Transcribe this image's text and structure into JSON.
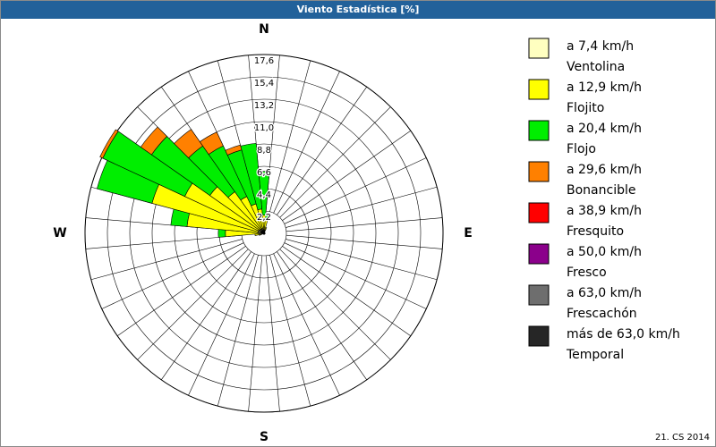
{
  "chart_data": {
    "type": "windrose",
    "title": "Viento Estadística [%]",
    "footer": "21. CS 2014",
    "categories": [
      "N",
      null,
      null,
      null,
      null,
      null,
      null,
      null,
      null,
      "E",
      null,
      null,
      null,
      null,
      null,
      null,
      null,
      null,
      "S",
      null,
      null,
      null,
      null,
      null,
      null,
      null,
      null,
      "W",
      null,
      null,
      null,
      null,
      null,
      null,
      null,
      null
    ],
    "ylim": [
      0,
      17.6
    ],
    "yticks": [
      {
        "value": 2.2,
        "label": "2,2"
      },
      {
        "value": 4.4,
        "label": "4,4"
      },
      {
        "value": 6.6,
        "label": "6,6"
      },
      {
        "value": 8.8,
        "label": "8,8"
      },
      {
        "value": 11.0,
        "label": "11,0"
      },
      {
        "value": 13.2,
        "label": "13,2"
      },
      {
        "value": 15.4,
        "label": "15,4"
      },
      {
        "value": 17.6,
        "label": "17,6"
      }
    ],
    "grid": true,
    "legend": "right",
    "series": [
      {
        "name": "a 7,4 km/h",
        "description": "Ventolina",
        "color": "#ffffc0",
        "values": [
          0.3,
          0.3,
          0.2,
          0.1,
          0.1,
          0.1,
          0.1,
          0.1,
          0.1,
          0.1,
          0.1,
          0.1,
          0.1,
          0.1,
          0.1,
          0.1,
          0.1,
          0.1,
          0.1,
          0.1,
          0.1,
          0.1,
          0.1,
          0.1,
          0.1,
          0.2,
          0.3,
          0.5,
          0.6,
          0.6,
          0.6,
          0.5,
          0.5,
          0.5,
          0.5,
          0.4
        ]
      },
      {
        "name": "a 12,9 km/h",
        "description": "Flojito",
        "color": "#ffff00",
        "values": [
          1.5,
          1.0,
          0.4,
          0,
          0,
          0,
          0,
          0,
          0,
          0,
          0,
          0,
          0,
          0,
          0,
          0,
          0,
          0,
          0,
          0,
          0,
          0,
          0,
          0,
          0,
          0.3,
          0.6,
          3.3,
          7.0,
          10.8,
          8.0,
          6.0,
          4.5,
          3.5,
          2.5,
          2.0
        ]
      },
      {
        "name": "a 20,4 km/h",
        "description": "Flojo",
        "color": "#00ee00",
        "values": [
          4.3,
          0.5,
          0,
          0,
          0,
          0,
          0,
          0,
          0,
          0,
          0,
          0,
          0,
          0,
          0,
          0,
          0,
          0,
          0,
          0,
          0,
          0,
          0,
          0,
          0,
          0,
          0,
          0.7,
          1.6,
          5.6,
          8.9,
          7.0,
          5.5,
          5.5,
          5.5,
          6.5
        ]
      },
      {
        "name": "a 29,6 km/h",
        "description": "Bonancible",
        "color": "#ff8000",
        "values": [
          0,
          0,
          0,
          0,
          0,
          0,
          0,
          0,
          0,
          0,
          0,
          0,
          0,
          0,
          0,
          0,
          0,
          0,
          0,
          0,
          0,
          0,
          0,
          0,
          0,
          0,
          0,
          0,
          0,
          0,
          0.3,
          1.3,
          2.0,
          1.5,
          0.5,
          0
        ]
      },
      {
        "name": "a 38,9 km/h",
        "description": "Fresquito",
        "color": "#ff0000",
        "values": [
          0,
          0,
          0,
          0,
          0,
          0,
          0,
          0,
          0,
          0,
          0,
          0,
          0,
          0,
          0,
          0,
          0,
          0,
          0,
          0,
          0,
          0,
          0,
          0,
          0,
          0,
          0,
          0,
          0,
          0,
          0,
          0,
          0,
          0,
          0,
          0
        ]
      },
      {
        "name": "a 50,0 km/h",
        "description": "Fresco",
        "color": "#8b008b",
        "values": [
          0,
          0,
          0,
          0,
          0,
          0,
          0,
          0,
          0,
          0,
          0,
          0,
          0,
          0,
          0,
          0,
          0,
          0,
          0,
          0,
          0,
          0,
          0,
          0,
          0,
          0,
          0,
          0,
          0,
          0,
          0,
          0,
          0,
          0,
          0,
          0
        ]
      },
      {
        "name": "a 63,0 km/h",
        "description": "Frescachón",
        "color": "#6e6e6e",
        "values": [
          0,
          0,
          0,
          0,
          0,
          0,
          0,
          0,
          0,
          0,
          0,
          0,
          0,
          0,
          0,
          0,
          0,
          0,
          0,
          0,
          0,
          0,
          0,
          0,
          0,
          0,
          0,
          0,
          0,
          0,
          0,
          0,
          0,
          0,
          0,
          0
        ]
      },
      {
        "name": "más de 63,0 km/h",
        "description": "Temporal",
        "color": "#262626",
        "values": [
          0,
          0,
          0,
          0,
          0,
          0,
          0,
          0,
          0,
          0,
          0,
          0,
          0,
          0,
          0,
          0,
          0,
          0,
          0,
          0,
          0,
          0,
          0,
          0,
          0,
          0,
          0,
          0,
          0,
          0,
          0,
          0,
          0,
          0,
          0,
          0
        ]
      }
    ]
  }
}
